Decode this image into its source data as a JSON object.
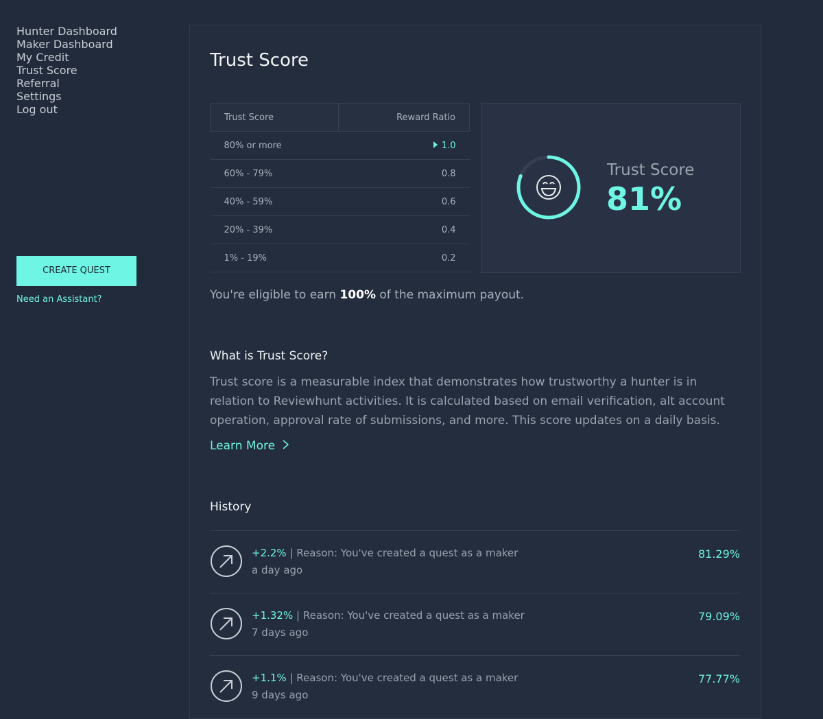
{
  "nav": {
    "items": [
      "Hunter Dashboard",
      "Maker Dashboard",
      "My Credit",
      "Trust Score",
      "Referral",
      "Settings",
      "Log out"
    ],
    "active": 3
  },
  "create_quest": "CREATE QUEST",
  "assistant": "Need an Assistant?",
  "title": "Trust Score",
  "table": {
    "headers": [
      "Trust Score",
      "Reward Ratio"
    ],
    "rows": [
      [
        "80% or more",
        "1.0"
      ],
      [
        "60% - 79%",
        "0.8"
      ],
      [
        "40% - 59%",
        "0.6"
      ],
      [
        "20% - 39%",
        "0.4"
      ],
      [
        "1% - 19%",
        "0.2"
      ]
    ],
    "current_row": 0
  },
  "score_card": {
    "label": "Trust Score",
    "score": {
      "value": 81,
      "label": "81%"
    }
  },
  "eligibility": {
    "before": "You're eligible to earn",
    "amount": "100%",
    "after": "of the maximum payout."
  },
  "about": {
    "heading": "What is Trust Score?",
    "text": "Trust score is a measurable index that demonstrates how trustworthy a hunter is in relation to Reviewhunt activities. It is calculated based on email verification, alt account operation, approval rate of submissions, and more. This score updates on a daily basis.",
    "link": "Learn More"
  },
  "history": {
    "heading": "History",
    "items": [
      {
        "change": "+2.2%",
        "reason": "| Reason: You've created a quest as a maker",
        "time": "a day ago",
        "score": "81.29%"
      },
      {
        "change": "+1.32%",
        "reason": "| Reason: You've created a quest as a maker",
        "time": "7 days ago",
        "score": "79.09%"
      },
      {
        "change": "+1.1%",
        "reason": "| Reason: You've created a quest as a maker",
        "time": "9 days ago",
        "score": "77.77%"
      }
    ]
  }
}
